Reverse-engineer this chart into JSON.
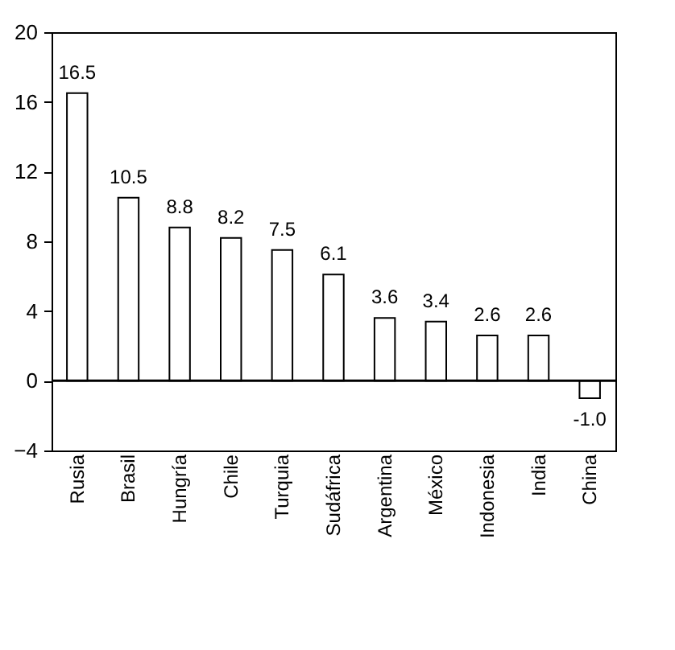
{
  "chart_data": {
    "type": "bar",
    "categories": [
      "Rusia",
      "Brasil",
      "Hungría",
      "Chile",
      "Turquia",
      "Sudáfrica",
      "Argentina",
      "México",
      "Indonesia",
      "India",
      "China"
    ],
    "values": [
      16.5,
      10.5,
      8.8,
      8.2,
      7.5,
      6.1,
      3.6,
      3.4,
      2.6,
      2.6,
      -1.0
    ],
    "value_labels": [
      "16.5",
      "10.5",
      "8.8",
      "8.2",
      "7.5",
      "6.1",
      "3.6",
      "3.4",
      "2.6",
      "2.6",
      "-1.0"
    ],
    "color": "#ffffff",
    "ylim": [
      -4,
      20
    ],
    "yticks": [
      -4,
      0,
      4,
      8,
      12,
      16,
      20
    ],
    "ref_lines": [
      {
        "axis": "y",
        "value": 0,
        "color": "#000000"
      }
    ],
    "grid": false
  }
}
